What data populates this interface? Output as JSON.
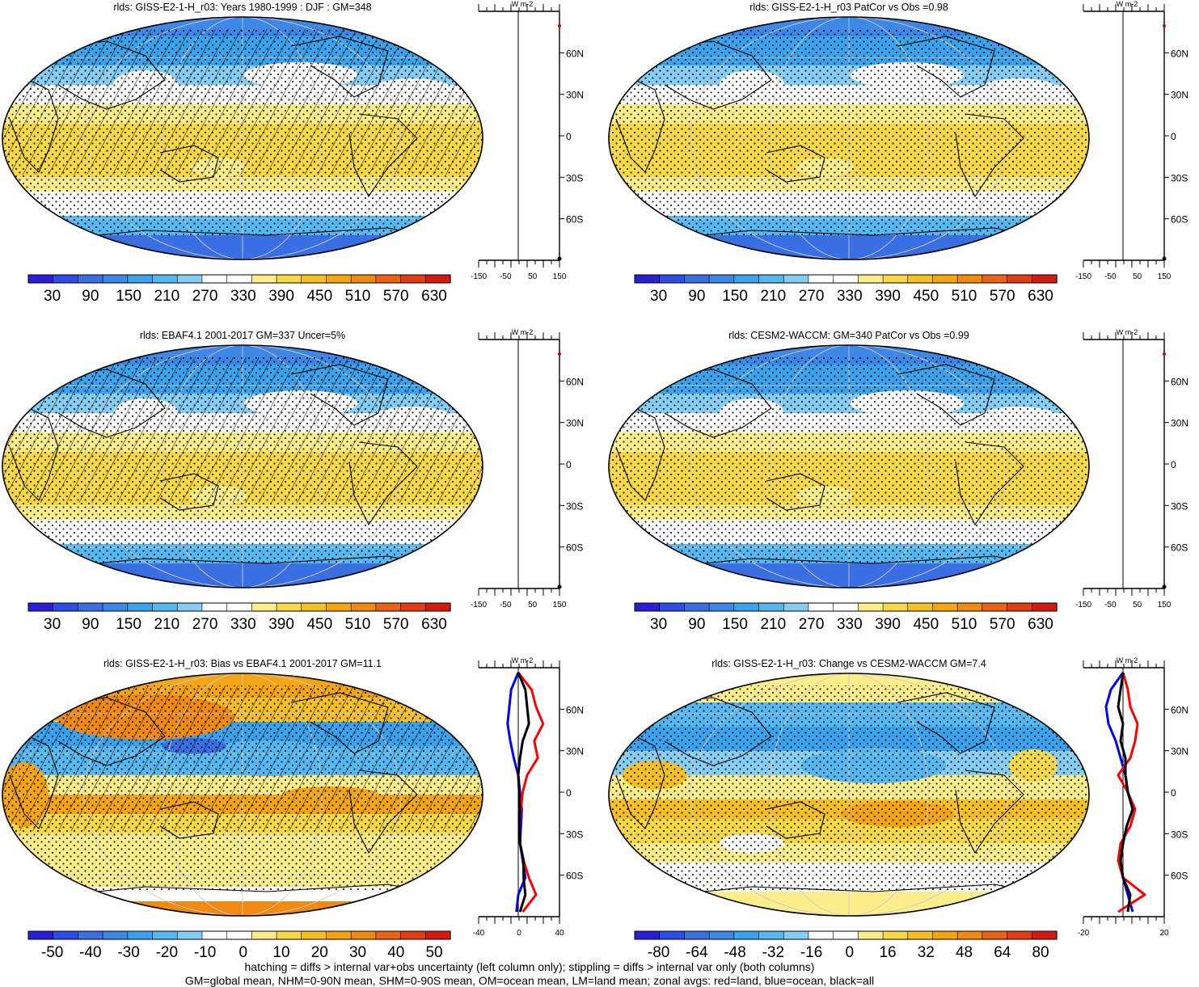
{
  "panels": [
    {
      "title": "rlds: GISS-E2-1-H_r03: Years 1980-1999 : DJF : GM=348",
      "scale": "abs",
      "hatch": true,
      "stipple": true,
      "colorbar_labels": [
        "30",
        "90",
        "150",
        "210",
        "270",
        "330",
        "390",
        "450",
        "510",
        "570",
        "630"
      ],
      "zonal_xticks": [
        "-150",
        "-50",
        "50",
        "150"
      ],
      "zonal_unit": "W m-2",
      "zonal_ylabels": [
        "60N",
        "30N",
        "0",
        "30S",
        "60S"
      ]
    },
    {
      "title": "rlds: GISS-E2-1-H_r03 PatCor vs Obs =0.98",
      "scale": "abs",
      "hatch": false,
      "stipple": true,
      "colorbar_labels": [
        "30",
        "90",
        "150",
        "210",
        "270",
        "330",
        "390",
        "450",
        "510",
        "570",
        "630"
      ],
      "zonal_xticks": [
        "-150",
        "-50",
        "50",
        "150"
      ],
      "zonal_unit": "W m-2",
      "zonal_ylabels": [
        "60N",
        "30N",
        "0",
        "30S",
        "60S"
      ]
    },
    {
      "title": "rlds: EBAF4.1 2001-2017 GM=337 Uncer=5%",
      "scale": "abs",
      "hatch": true,
      "stipple": true,
      "colorbar_labels": [
        "30",
        "90",
        "150",
        "210",
        "270",
        "330",
        "390",
        "450",
        "510",
        "570",
        "630"
      ],
      "zonal_xticks": [
        "-150",
        "-50",
        "50",
        "150"
      ],
      "zonal_unit": "W m-2",
      "zonal_ylabels": [
        "60N",
        "30N",
        "0",
        "30S",
        "60S"
      ]
    },
    {
      "title": "rlds: CESM2-WACCM: GM=340 PatCor vs Obs =0.99",
      "scale": "abs",
      "hatch": false,
      "stipple": true,
      "colorbar_labels": [
        "30",
        "90",
        "150",
        "210",
        "270",
        "330",
        "390",
        "450",
        "510",
        "570",
        "630"
      ],
      "zonal_xticks": [
        "-150",
        "-50",
        "50",
        "150"
      ],
      "zonal_unit": "W m-2",
      "zonal_ylabels": [
        "60N",
        "30N",
        "0",
        "30S",
        "60S"
      ]
    },
    {
      "title": "rlds: GISS-E2-1-H_r03: Bias vs EBAF4.1 2001-2017 GM=11.1",
      "scale": "bias",
      "hatch": true,
      "stipple": true,
      "colorbar_labels": [
        "-50",
        "-40",
        "-30",
        "-20",
        "-10",
        "0",
        "10",
        "20",
        "30",
        "40",
        "50"
      ],
      "zonal_xticks": [
        "-40",
        "0",
        "40"
      ],
      "zonal_unit": "W m-2",
      "zonal_ylabels": [
        "60N",
        "30N",
        "0",
        "30S",
        "60S"
      ]
    },
    {
      "title": "rlds: GISS-E2-1-H_r03: Change vs CESM2-WACCM GM=7.4",
      "scale": "change",
      "hatch": false,
      "stipple": true,
      "colorbar_labels": [
        "-80",
        "-64",
        "-48",
        "-32",
        "-16",
        "0",
        "16",
        "32",
        "48",
        "64",
        "80"
      ],
      "zonal_xticks": [
        "-20",
        "20"
      ],
      "zonal_unit": "W m-2",
      "zonal_ylabels": [
        "60N",
        "30N",
        "0",
        "30S",
        "60S"
      ]
    }
  ],
  "palette": [
    "#2a1fd6",
    "#2f4be8",
    "#3a6fe3",
    "#3d88e6",
    "#3aa3ec",
    "#55b8f0",
    "#86cdf3",
    "#ffffff",
    "#ffffff",
    "#fbee8a",
    "#f7d847",
    "#f5c026",
    "#f4a514",
    "#f08a10",
    "#ea6316",
    "#e23c14",
    "#d51a10"
  ],
  "zonal_colors": {
    "land": "#ff0000",
    "ocean": "#0000ff",
    "all": "#000000"
  },
  "footer": [
    "hatching = diffs > internal var+obs uncertainty (left column only); stippling = diffs > internal var only (both columns)",
    "GM=global mean, NHM=0-90N mean, SHM=0-90S mean, OM=ocean mean, LM=land mean; zonal avgs: red=land, blue=ocean, black=all"
  ]
}
